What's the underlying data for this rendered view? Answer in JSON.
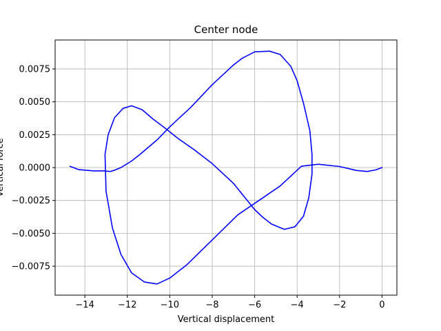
{
  "chart_data": {
    "type": "line",
    "title": "Center node",
    "xlabel": "Vertical displacement",
    "ylabel": "Vertical force",
    "xlim": [
      -15.4,
      0.7
    ],
    "ylim": [
      -0.0097,
      0.0097
    ],
    "xticks": [
      -14,
      -12,
      -10,
      -8,
      -6,
      -4,
      -2,
      0
    ],
    "xtick_labels": [
      "−14",
      "−12",
      "−10",
      "−8",
      "−6",
      "−4",
      "−2",
      "0"
    ],
    "yticks": [
      -0.0075,
      -0.005,
      -0.0025,
      0.0,
      0.0025,
      0.005,
      0.0075
    ],
    "ytick_labels": [
      "−0.0075",
      "−0.0050",
      "−0.0025",
      "0.0000",
      "0.0025",
      "0.0050",
      "0.0075"
    ],
    "grid": true,
    "series": [
      {
        "color": "#0000ff",
        "x": [
          0.0,
          -0.3,
          -0.7,
          -1.2,
          -2.0,
          -3.0,
          -3.8,
          -4.8,
          -5.8,
          -6.8,
          -8.0,
          -9.2,
          -10.0,
          -10.6,
          -11.2,
          -11.8,
          -12.3,
          -12.7,
          -13.0,
          -13.05,
          -12.9,
          -12.6,
          -12.2,
          -11.8,
          -11.3,
          -10.8,
          -10.3,
          -9.6,
          -8.8,
          -8.0,
          -7.0,
          -6.5,
          -6.0,
          -5.6,
          -5.2,
          -4.6,
          -4.1,
          -3.7,
          -3.45,
          -3.3,
          -3.3,
          -3.4,
          -3.7,
          -4.0,
          -4.3,
          -4.8,
          -5.3,
          -6.0,
          -6.6,
          -7.0,
          -8.0,
          -9.0,
          -10.0,
          -10.6,
          -11.4,
          -11.8,
          -12.0,
          -12.3,
          -12.6,
          -12.8,
          -13.1,
          -13.6,
          -14.3,
          -14.7
        ],
        "y": [
          0.0,
          -0.00018,
          -0.0003,
          -0.00022,
          8e-05,
          0.00025,
          0.0001,
          -0.0014,
          -0.0025,
          -0.0036,
          -0.0055,
          -0.0074,
          -0.0084,
          -0.00885,
          -0.0087,
          -0.008,
          -0.0066,
          -0.0046,
          -0.0018,
          0.001,
          0.0025,
          0.0038,
          0.0045,
          0.0047,
          0.0044,
          0.0037,
          0.0031,
          0.0022,
          0.0013,
          0.0003,
          -0.0012,
          -0.0022,
          -0.0032,
          -0.0038,
          -0.0043,
          -0.0047,
          -0.0045,
          -0.0037,
          -0.0023,
          -0.0005,
          0.001,
          0.0028,
          0.0049,
          0.0066,
          0.0077,
          0.0086,
          0.00885,
          0.0088,
          0.0083,
          0.0078,
          0.0063,
          0.0046,
          0.0031,
          0.0021,
          0.001,
          0.0005,
          0.0003,
          0.0,
          -0.0002,
          -0.0003,
          -0.00025,
          -0.00025,
          -0.00015,
          0.0001
        ]
      }
    ]
  }
}
